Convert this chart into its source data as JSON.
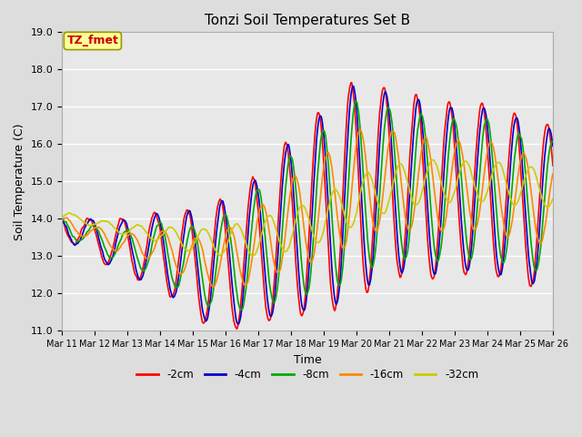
{
  "title": "Tonzi Soil Temperatures Set B",
  "xlabel": "Time",
  "ylabel": "Soil Temperature (C)",
  "ylim": [
    11.0,
    19.0
  ],
  "yticks": [
    11.0,
    12.0,
    13.0,
    14.0,
    15.0,
    16.0,
    17.0,
    18.0,
    19.0
  ],
  "x_labels": [
    "Mar 11",
    "Mar 12",
    "Mar 13",
    "Mar 14",
    "Mar 15",
    "Mar 16",
    "Mar 17",
    "Mar 18",
    "Mar 19",
    "Mar 20",
    "Mar 21",
    "Mar 22",
    "Mar 23",
    "Mar 24",
    "Mar 25",
    "Mar 26"
  ],
  "annotation_text": "TZ_fmet",
  "annotation_color": "#cc0000",
  "annotation_bg": "#ffff99",
  "bg_color": "#dddddd",
  "plot_bg": "#e8e8e8",
  "grid_color": "#ffffff",
  "legend_entries": [
    "-2cm",
    "-4cm",
    "-8cm",
    "-16cm",
    "-32cm"
  ],
  "line_colors": [
    "#ff0000",
    "#0000cc",
    "#00aa00",
    "#ff8800",
    "#cccc00"
  ],
  "line_widths": [
    1.5,
    1.5,
    1.5,
    1.5,
    1.5
  ],
  "figsize": [
    6.4,
    4.8
  ],
  "dpi": 100
}
